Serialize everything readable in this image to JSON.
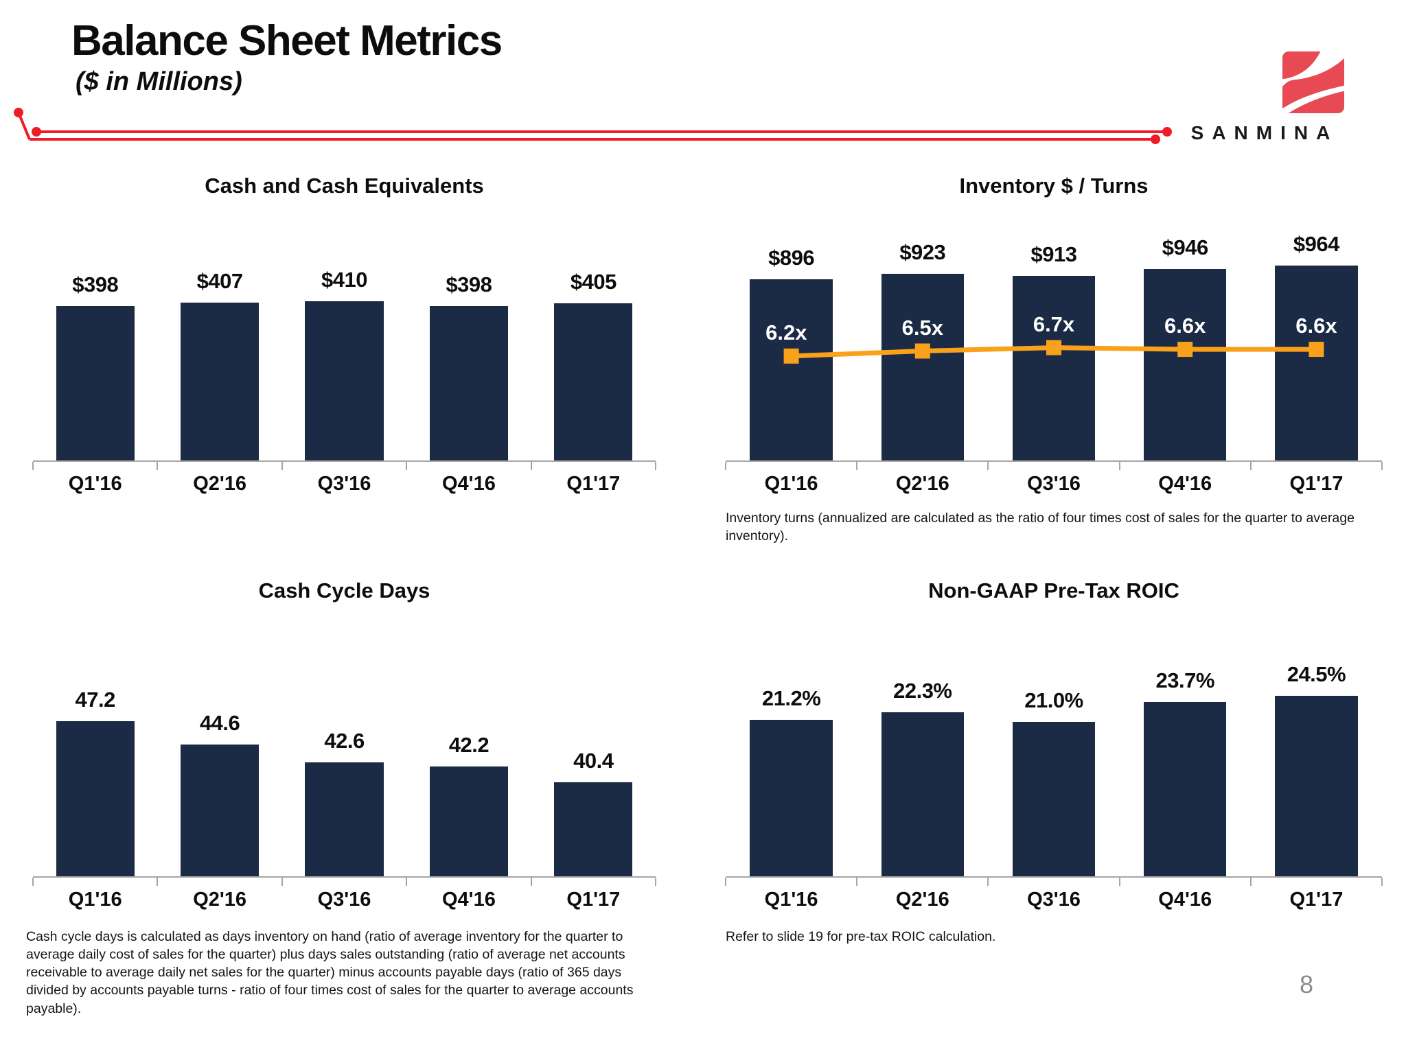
{
  "header": {
    "title": "Balance Sheet Metrics",
    "subtitle": "($ in Millions)"
  },
  "logo": {
    "text": "SANMINA"
  },
  "page_number": "8",
  "colors": {
    "navy": "#1b2a45",
    "orange": "#f9a11b",
    "red_line": "#ee1c25",
    "logo_red": "#e84a54",
    "axis_gray": "#a6a6a6",
    "page_gray": "#8c8c8c"
  },
  "chart_data": [
    {
      "id": "cash",
      "type": "bar",
      "title": "Cash and Cash Equivalents",
      "categories": [
        "Q1'16",
        "Q2'16",
        "Q3'16",
        "Q4'16",
        "Q1'17"
      ],
      "values": [
        398,
        407,
        410,
        398,
        405
      ],
      "labels": [
        "$398",
        "$407",
        "$410",
        "$398",
        "$405"
      ],
      "ylabel": "",
      "ylim": [
        0,
        650
      ],
      "grid": false,
      "legend": "none"
    },
    {
      "id": "inventory",
      "type": "bar",
      "title": "Inventory $ / Turns",
      "categories": [
        "Q1'16",
        "Q2'16",
        "Q3'16",
        "Q4'16",
        "Q1'17"
      ],
      "values": [
        896,
        923,
        913,
        946,
        964
      ],
      "labels": [
        "$896",
        "$923",
        "$913",
        "$946",
        "$964"
      ],
      "ylim": [
        0,
        1250
      ],
      "grid": false,
      "legend": "none",
      "line": {
        "type": "line",
        "name": "Inventory turns (annualized)",
        "values": [
          6.2,
          6.5,
          6.7,
          6.6,
          6.6
        ],
        "labels": [
          "6.2x",
          "6.5x",
          "6.7x",
          "6.6x",
          "6.6x"
        ],
        "ylim": [
          0,
          15
        ],
        "marker": "square"
      },
      "footnote": "Inventory turns (annualized are calculated as the ratio of four times cost of sales for the quarter to average inventory)."
    },
    {
      "id": "cycle",
      "type": "bar",
      "title": "Cash Cycle Days",
      "categories": [
        "Q1'16",
        "Q2'16",
        "Q3'16",
        "Q4'16",
        "Q1'17"
      ],
      "values": [
        47.2,
        44.6,
        42.6,
        42.2,
        40.4
      ],
      "labels": [
        "47.2",
        "44.6",
        "42.6",
        "42.2",
        "40.4"
      ],
      "ylim": [
        30,
        50
      ],
      "grid": false,
      "legend": "none",
      "footnote": "Cash cycle days is calculated as days inventory on hand (ratio of average inventory for the quarter to average daily cost of sales for the quarter) plus days sales outstanding (ratio of average net accounts receivable to average daily net sales for the quarter) minus accounts payable days (ratio of 365 days divided by accounts payable turns - ratio of four times cost of sales for the quarter to average accounts payable)."
    },
    {
      "id": "roic",
      "type": "bar",
      "title": "Non-GAAP Pre-Tax ROIC",
      "categories": [
        "Q1'16",
        "Q2'16",
        "Q3'16",
        "Q4'16",
        "Q1'17"
      ],
      "values": [
        21.2,
        22.3,
        21.0,
        23.7,
        24.5
      ],
      "labels": [
        "21.2%",
        "22.3%",
        "21.0%",
        "23.7%",
        "24.5%"
      ],
      "ylim": [
        0,
        30
      ],
      "grid": false,
      "legend": "none",
      "footnote": "Refer to slide 19 for pre-tax ROIC calculation."
    }
  ]
}
